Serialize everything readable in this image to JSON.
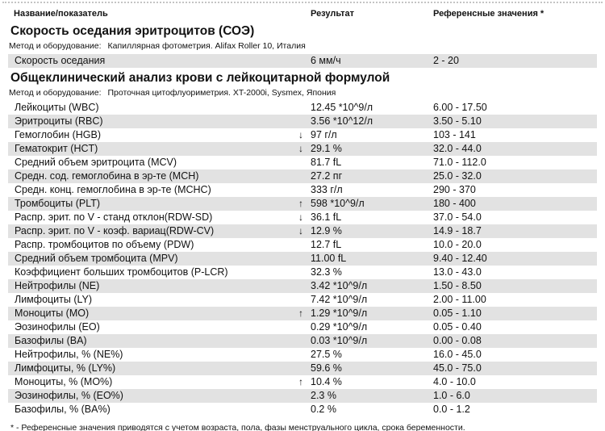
{
  "columns": {
    "name": "Название/показатель",
    "result": "Результат",
    "reference": "Референсные значения *"
  },
  "footnote": "* - Референсные значения приводятся с учетом возраста, пола, фазы менструального цикла, срока беременности.",
  "colors": {
    "row_shaded": "#e2e2e2",
    "dotted_line": "#c4c4c4",
    "text": "#121212"
  },
  "sections": [
    {
      "title": "Скорость оседания эритроцитов (СОЭ)",
      "method_label": "Метод и оборудование:",
      "method": "Капиллярная фотометрия. Alifax Roller 10, Италия",
      "rows": [
        {
          "name": "Скорость оседания",
          "flag": "",
          "result": "6 мм/ч",
          "reference": "2 - 20",
          "shaded": true
        }
      ]
    },
    {
      "title": "Общеклинический анализ крови с лейкоцитарной формулой",
      "method_label": "Метод и оборудование:",
      "method": "Проточная цитофлуориметрия. XT-2000i, Sysmex, Япония",
      "rows": [
        {
          "name": "Лейкоциты (WBC)",
          "flag": "",
          "result": "12.45 *10^9/л",
          "reference": "6.00 - 17.50",
          "shaded": false
        },
        {
          "name": "Эритроциты (RBC)",
          "flag": "",
          "result": "3.56 *10^12/л",
          "reference": "3.50 - 5.10",
          "shaded": true
        },
        {
          "name": "Гемоглобин (HGB)",
          "flag": "↓",
          "result": "97 г/л",
          "reference": "103 - 141",
          "shaded": false
        },
        {
          "name": "Гематокрит (HCT)",
          "flag": "↓",
          "result": "29.1 %",
          "reference": "32.0 - 44.0",
          "shaded": true
        },
        {
          "name": "Средний объем эритроцита (MCV)",
          "flag": "",
          "result": "81.7 fL",
          "reference": "71.0 - 112.0",
          "shaded": false
        },
        {
          "name": "Средн. сод. гемоглобина в эр-те (MCH)",
          "flag": "",
          "result": "27.2 пг",
          "reference": "25.0 - 32.0",
          "shaded": true
        },
        {
          "name": "Средн. конц. гемоглобина в эр-те (MCHC)",
          "flag": "",
          "result": "333 г/л",
          "reference": "290 - 370",
          "shaded": false
        },
        {
          "name": "Тромбоциты (PLT)",
          "flag": "↑",
          "result": "598 *10^9/л",
          "reference": "180 - 400",
          "shaded": true
        },
        {
          "name": "Распр. эрит. по V - станд отклон(RDW-SD)",
          "flag": "↓",
          "result": "36.1 fL",
          "reference": "37.0 - 54.0",
          "shaded": false
        },
        {
          "name": "Распр. эрит. по V - коэф. вариац(RDW-CV)",
          "flag": "↓",
          "result": "12.9 %",
          "reference": "14.9 - 18.7",
          "shaded": true
        },
        {
          "name": "Распр. тромбоцитов по объему (PDW)",
          "flag": "",
          "result": "12.7 fL",
          "reference": "10.0 - 20.0",
          "shaded": false
        },
        {
          "name": "Средний объем тромбоцита (MPV)",
          "flag": "",
          "result": "11.00 fL",
          "reference": "9.40 - 12.40",
          "shaded": true
        },
        {
          "name": "Коэффициент больших тромбоцитов (P-LCR)",
          "flag": "",
          "result": "32.3 %",
          "reference": "13.0 - 43.0",
          "shaded": false
        },
        {
          "name": "Нейтрофилы (NE)",
          "flag": "",
          "result": "3.42 *10^9/л",
          "reference": "1.50 - 8.50",
          "shaded": true
        },
        {
          "name": "Лимфоциты (LY)",
          "flag": "",
          "result": "7.42 *10^9/л",
          "reference": "2.00 - 11.00",
          "shaded": false
        },
        {
          "name": "Моноциты (MO)",
          "flag": "↑",
          "result": "1.29 *10^9/л",
          "reference": "0.05 - 1.10",
          "shaded": true
        },
        {
          "name": "Эозинофилы (EO)",
          "flag": "",
          "result": "0.29 *10^9/л",
          "reference": "0.05 - 0.40",
          "shaded": false
        },
        {
          "name": "Базофилы (BA)",
          "flag": "",
          "result": "0.03 *10^9/л",
          "reference": "0.00 - 0.08",
          "shaded": true
        },
        {
          "name": "Нейтрофилы, % (NE%)",
          "flag": "",
          "result": "27.5 %",
          "reference": "16.0 - 45.0",
          "shaded": false
        },
        {
          "name": "Лимфоциты, % (LY%)",
          "flag": "",
          "result": "59.6 %",
          "reference": "45.0 - 75.0",
          "shaded": true
        },
        {
          "name": "Моноциты, % (MO%)",
          "flag": "↑",
          "result": "10.4 %",
          "reference": "4.0 - 10.0",
          "shaded": false
        },
        {
          "name": "Эозинофилы, % (EO%)",
          "flag": "",
          "result": "2.3 %",
          "reference": "1.0 - 6.0",
          "shaded": true
        },
        {
          "name": "Базофилы, % (BA%)",
          "flag": "",
          "result": "0.2 %",
          "reference": "0.0 - 1.2",
          "shaded": false
        }
      ]
    }
  ]
}
